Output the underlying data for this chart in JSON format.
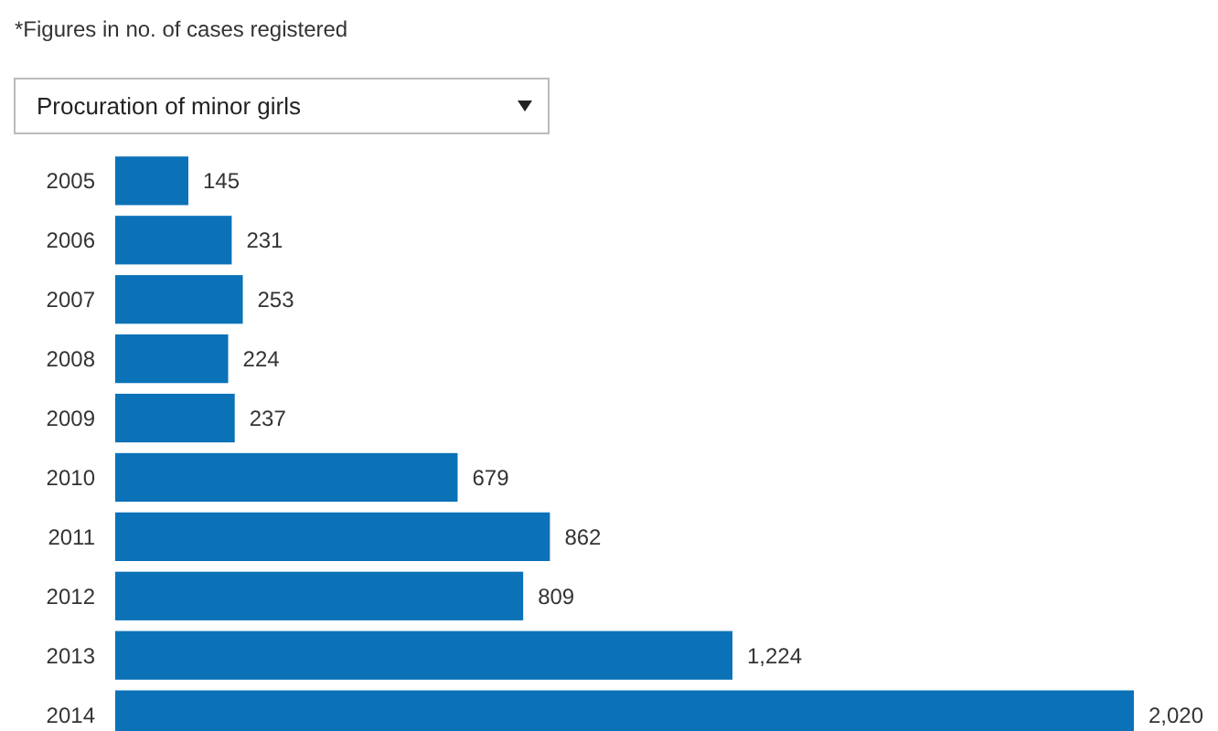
{
  "chart_data": {
    "type": "bar",
    "orientation": "horizontal",
    "title": "Procuration of minor girls",
    "annotations": [
      "*Figures in no. of cases registered"
    ],
    "categories": [
      "2005",
      "2006",
      "2007",
      "2008",
      "2009",
      "2010",
      "2011",
      "2012",
      "2013",
      "2014"
    ],
    "values": [
      145,
      231,
      253,
      224,
      237,
      679,
      862,
      809,
      1224,
      2020
    ],
    "value_labels": [
      "145",
      "231",
      "253",
      "224",
      "237",
      "679",
      "862",
      "809",
      "1,224",
      "2,020"
    ],
    "color": "#0b72b8"
  }
}
